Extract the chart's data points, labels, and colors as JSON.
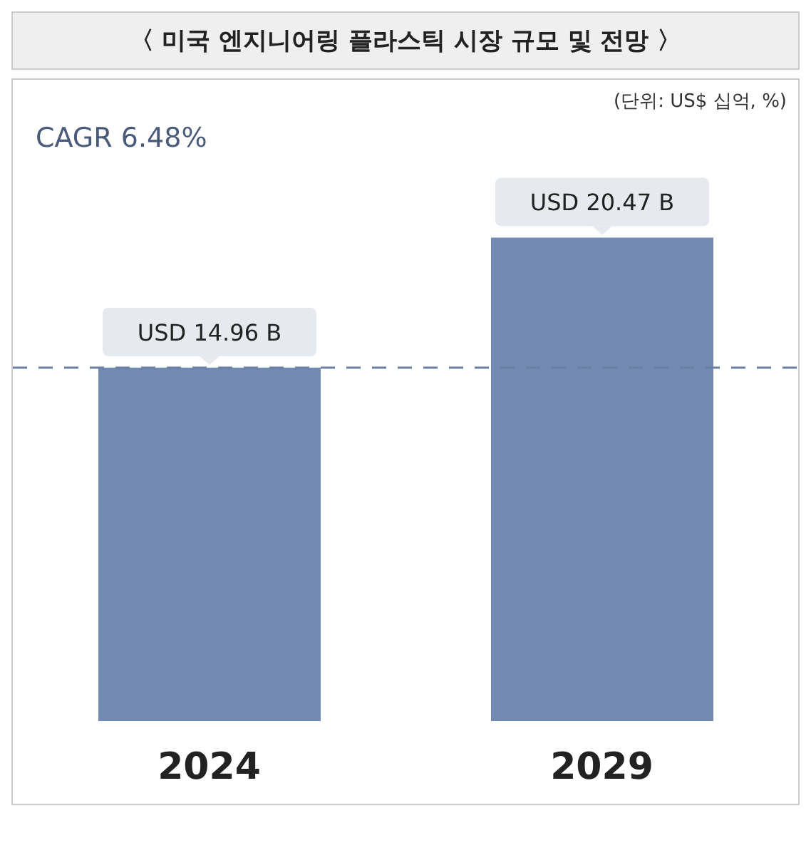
{
  "chart_data": {
    "type": "bar",
    "title": "〈 미국 엔지니어링 플라스틱 시장 규모 및 전망 〉",
    "subtitle": "(단위: US$ 십억, %)",
    "annotations": [
      "CAGR 6.48%"
    ],
    "categories": [
      "2024",
      "2029"
    ],
    "values": [
      14.96,
      20.47
    ],
    "color": "#7289b2",
    "value_labels": [
      "USD 14.96 B",
      "USD 20.47 B"
    ],
    "ref_lines": [
      {
        "axis": "y",
        "value": 14.96,
        "color": "#6b7fa3",
        "line_style": "dashed"
      }
    ]
  }
}
